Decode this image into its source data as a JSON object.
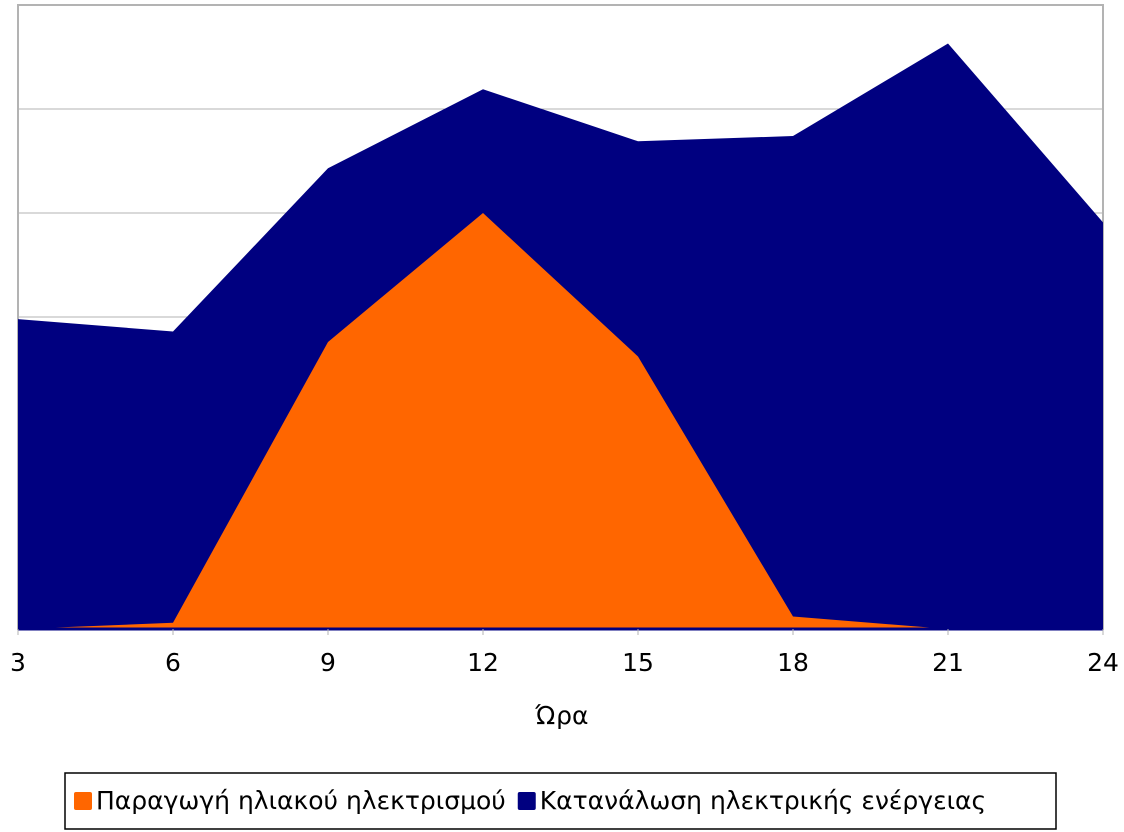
{
  "chart_data": {
    "type": "area",
    "x_label": "Ώρα",
    "x": [
      3,
      6,
      9,
      12,
      15,
      18,
      21,
      24
    ],
    "xlim": [
      3,
      24
    ],
    "xticks": [
      3,
      6,
      9,
      12,
      15,
      18,
      21,
      24
    ],
    "ylim": [
      0,
      6
    ],
    "yticks": [
      0,
      1,
      2,
      3,
      4,
      5,
      6
    ],
    "grid": true,
    "legend": "bottom",
    "series": [
      {
        "name": "Παραγωγή ηλιακού ηλεκτρισμού",
        "color": "#ff6600",
        "values": [
          0,
          0.06,
          2.76,
          4.0,
          2.62,
          0.12,
          0,
          0
        ]
      },
      {
        "name": "Κατανάλωση ηλεκτρικής ενέργειας",
        "color": "#000080",
        "values": [
          2.98,
          2.86,
          4.43,
          5.19,
          4.69,
          4.74,
          5.63,
          3.91
        ]
      }
    ]
  }
}
